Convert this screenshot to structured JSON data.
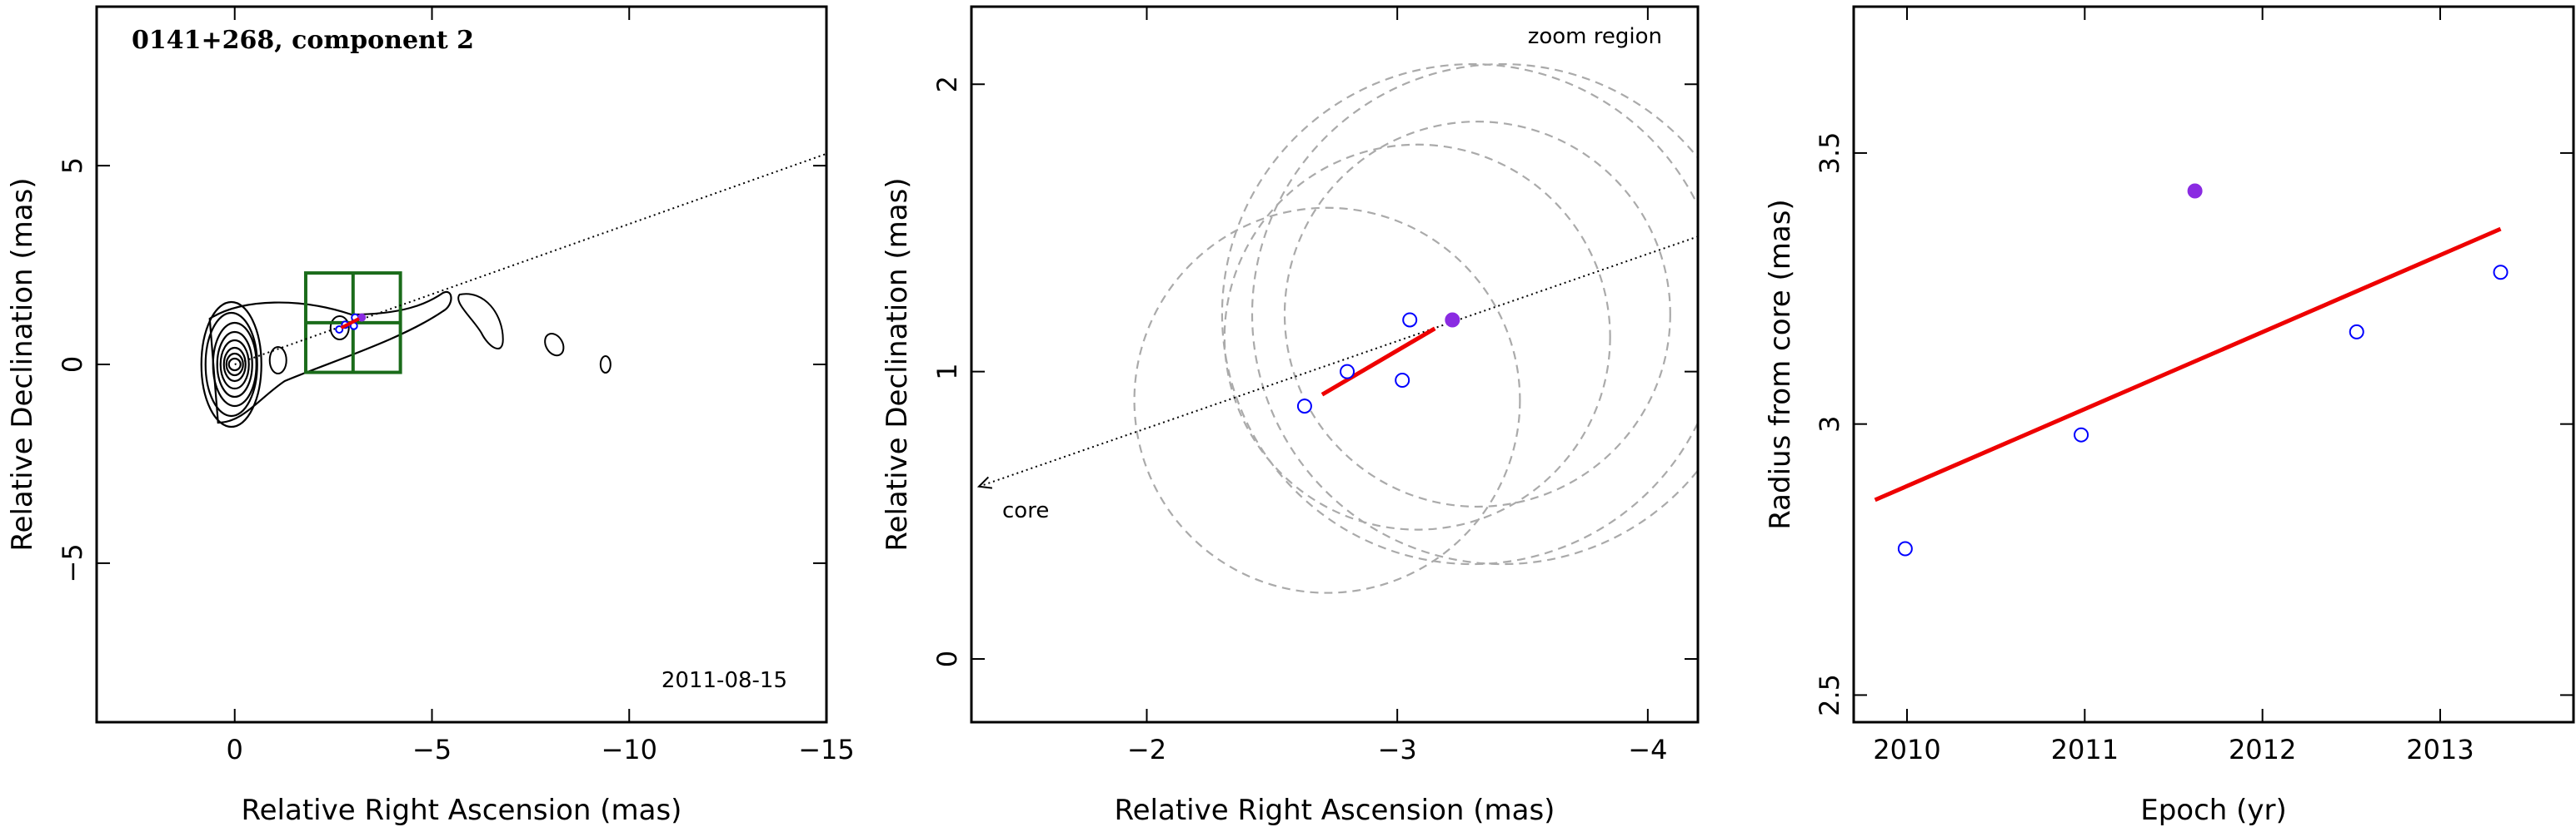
{
  "panel1": {
    "title": "0141+268, component 2",
    "date": "2011-08-15",
    "xlabel": "Relative Right Ascension (mas)",
    "ylabel": "Relative Declination (mas)",
    "xticks": [
      {
        "v": 0,
        "t": "0"
      },
      {
        "v": -5,
        "t": "−5"
      },
      {
        "v": -10,
        "t": "−10"
      },
      {
        "v": -15,
        "t": "−15"
      }
    ],
    "yticks": [
      {
        "v": -5,
        "t": "−5"
      },
      {
        "v": 0,
        "t": "0"
      },
      {
        "v": 5,
        "t": "5"
      }
    ]
  },
  "panel2": {
    "xlabel": "Relative Right Ascension (mas)",
    "ylabel": "Relative Declination (mas)",
    "zoom_label": "zoom region",
    "core_label": "core",
    "xticks": [
      {
        "v": -2,
        "t": "−2"
      },
      {
        "v": -3,
        "t": "−3"
      },
      {
        "v": -4,
        "t": "−4"
      }
    ],
    "yticks": [
      {
        "v": 0,
        "t": "0"
      },
      {
        "v": 1,
        "t": "1"
      },
      {
        "v": 2,
        "t": "2"
      }
    ]
  },
  "panel3": {
    "xlabel": "Epoch (yr)",
    "ylabel": "Radius from core (mas)",
    "xticks": [
      {
        "v": 2010,
        "t": "2010"
      },
      {
        "v": 2011,
        "t": "2011"
      },
      {
        "v": 2012,
        "t": "2012"
      },
      {
        "v": 2013,
        "t": "2013"
      }
    ],
    "yticks": [
      {
        "v": 2.5,
        "t": "2.5"
      },
      {
        "v": 3,
        "t": "3"
      },
      {
        "v": 3.5,
        "t": "3.5"
      }
    ]
  },
  "colors": {
    "open_marker": "#0000ff",
    "filled_marker": "#8a2be2",
    "fit_line": "#ee0000",
    "zoom_box": "#1a6b1a",
    "circles": "#aaaaaa",
    "contours": "#000000"
  },
  "chart_data": [
    {
      "type": "contour",
      "panel": "panel1",
      "xlim": [
        3.5,
        -15
      ],
      "ylim": [
        -9,
        9
      ],
      "contour_center": [
        0,
        0
      ],
      "zoom_box": {
        "x": [
          -1.8,
          -4.2
        ],
        "y": [
          -0.2,
          2.3
        ]
      },
      "jet_direction_line": {
        "from": [
          0,
          0
        ],
        "to": [
          -15,
          5.3
        ]
      },
      "fit_segment": {
        "from": [
          -2.7,
          0.92
        ],
        "to": [
          -3.15,
          1.15
        ]
      },
      "positions": [
        {
          "x": -2.65,
          "y": 0.88,
          "filled": false
        },
        {
          "x": -2.8,
          "y": 1.0,
          "filled": false
        },
        {
          "x": -3.02,
          "y": 0.97,
          "filled": false
        },
        {
          "x": -3.05,
          "y": 1.18,
          "filled": false
        },
        {
          "x": -3.22,
          "y": 1.18,
          "filled": true
        }
      ]
    },
    {
      "type": "scatter",
      "panel": "panel2",
      "xlim": [
        -1.3,
        -4.2
      ],
      "ylim": [
        -0.22,
        2.27
      ],
      "points": [
        {
          "x": -2.63,
          "y": 0.88,
          "filled": false
        },
        {
          "x": -2.8,
          "y": 1.0,
          "filled": false
        },
        {
          "x": -3.02,
          "y": 0.97,
          "filled": false
        },
        {
          "x": -3.05,
          "y": 1.18,
          "filled": false
        },
        {
          "x": -3.22,
          "y": 1.18,
          "filled": true
        }
      ],
      "fit_segment": {
        "from": [
          -2.7,
          0.92
        ],
        "to": [
          -3.15,
          1.15
        ]
      },
      "jet_direction_line": {
        "from": [
          -1.33,
          0.6
        ],
        "to": [
          -4.2,
          1.47
        ]
      },
      "uncertainty_circles": [
        {
          "cx": -2.72,
          "cy": 0.9,
          "r": 0.67
        },
        {
          "cx": -3.08,
          "cy": 1.12,
          "r": 0.67
        },
        {
          "cx": -3.3,
          "cy": 1.2,
          "r": 0.87
        },
        {
          "cx": -3.32,
          "cy": 1.2,
          "r": 0.67
        },
        {
          "cx": -3.42,
          "cy": 1.2,
          "r": 0.87
        }
      ]
    },
    {
      "type": "scatter",
      "panel": "panel3",
      "xlim": [
        2009.7,
        2013.75
      ],
      "ylim": [
        2.45,
        3.77
      ],
      "points": [
        {
          "x": 2009.99,
          "y": 2.77,
          "filled": false
        },
        {
          "x": 2010.98,
          "y": 2.98,
          "filled": false
        },
        {
          "x": 2011.62,
          "y": 3.43,
          "filled": true
        },
        {
          "x": 2012.53,
          "y": 3.17,
          "filled": false
        },
        {
          "x": 2013.34,
          "y": 3.28,
          "filled": false
        }
      ],
      "fit_line": {
        "from": [
          2009.82,
          2.86
        ],
        "to": [
          2013.34,
          3.36
        ]
      }
    }
  ]
}
